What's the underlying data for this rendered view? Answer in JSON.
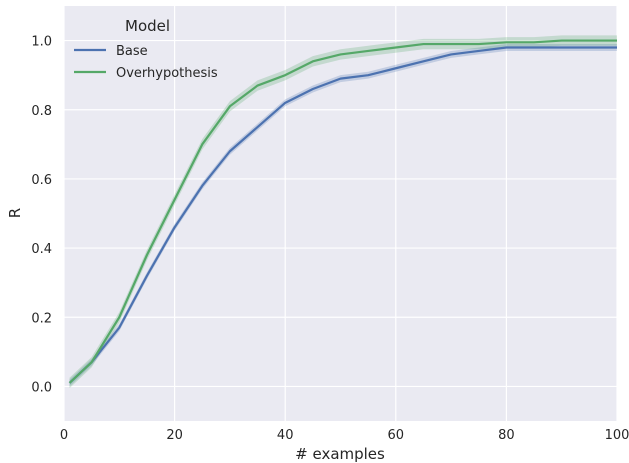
{
  "chart_data": {
    "type": "line",
    "xlabel": "# examples",
    "ylabel": "R",
    "xlim": [
      0,
      100
    ],
    "ylim": [
      -0.1,
      1.1
    ],
    "xticks": [
      0,
      20,
      40,
      60,
      80,
      100
    ],
    "yticks": [
      0.0,
      0.2,
      0.4,
      0.6,
      0.8,
      1.0
    ],
    "grid": true,
    "legend": {
      "title": "Model",
      "placement": "top-left"
    },
    "x": [
      1,
      5,
      10,
      15,
      20,
      25,
      30,
      35,
      40,
      45,
      50,
      55,
      60,
      65,
      70,
      75,
      80,
      85,
      90,
      95,
      100
    ],
    "series": [
      {
        "name": "Base",
        "color": "#4c72b0",
        "values": [
          0.01,
          0.07,
          0.17,
          0.32,
          0.46,
          0.58,
          0.68,
          0.75,
          0.82,
          0.86,
          0.89,
          0.9,
          0.92,
          0.94,
          0.96,
          0.97,
          0.98,
          0.98,
          0.98,
          0.98,
          0.98
        ],
        "band": 0.01
      },
      {
        "name": "Overhypothesis",
        "color": "#55a868",
        "values": [
          0.01,
          0.07,
          0.2,
          0.38,
          0.54,
          0.7,
          0.81,
          0.87,
          0.9,
          0.94,
          0.96,
          0.97,
          0.98,
          0.99,
          0.99,
          0.99,
          0.995,
          0.995,
          1.0,
          1.0,
          1.0
        ],
        "band": 0.015
      }
    ]
  }
}
